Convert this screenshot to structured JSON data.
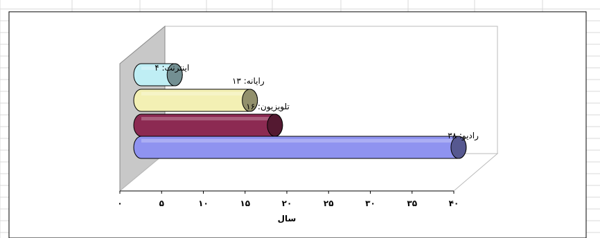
{
  "chart_data": {
    "type": "bar",
    "orientation": "horizontal",
    "style": "3d-cylinder",
    "categories": [
      "رادیو",
      "تلویزیون",
      "رایانه",
      "اینترنت"
    ],
    "series": [
      {
        "values": [
          38,
          16,
          13,
          4
        ],
        "data_labels": [
          "رادیو: ۳۸",
          "تلویزیون: ۱۶",
          "رایانه: ۱۳",
          "اینترنت: ۴"
        ],
        "colors": [
          "#8f93f0",
          "#8c2a52",
          "#f3f0b4",
          "#bfeef4"
        ]
      }
    ],
    "xlabel": "سال",
    "xlim": [
      0,
      40
    ],
    "x_ticks": [
      0,
      5,
      10,
      15,
      20,
      25,
      30,
      35,
      40
    ],
    "x_tick_labels": [
      "۰",
      "۵",
      "۱۰",
      "۱۵",
      "۲۰",
      "۲۵",
      "۳۰",
      "۳۵",
      "۴۰"
    ],
    "grid": false,
    "legend": "none",
    "background_wall_color": "#c8c8c8"
  }
}
